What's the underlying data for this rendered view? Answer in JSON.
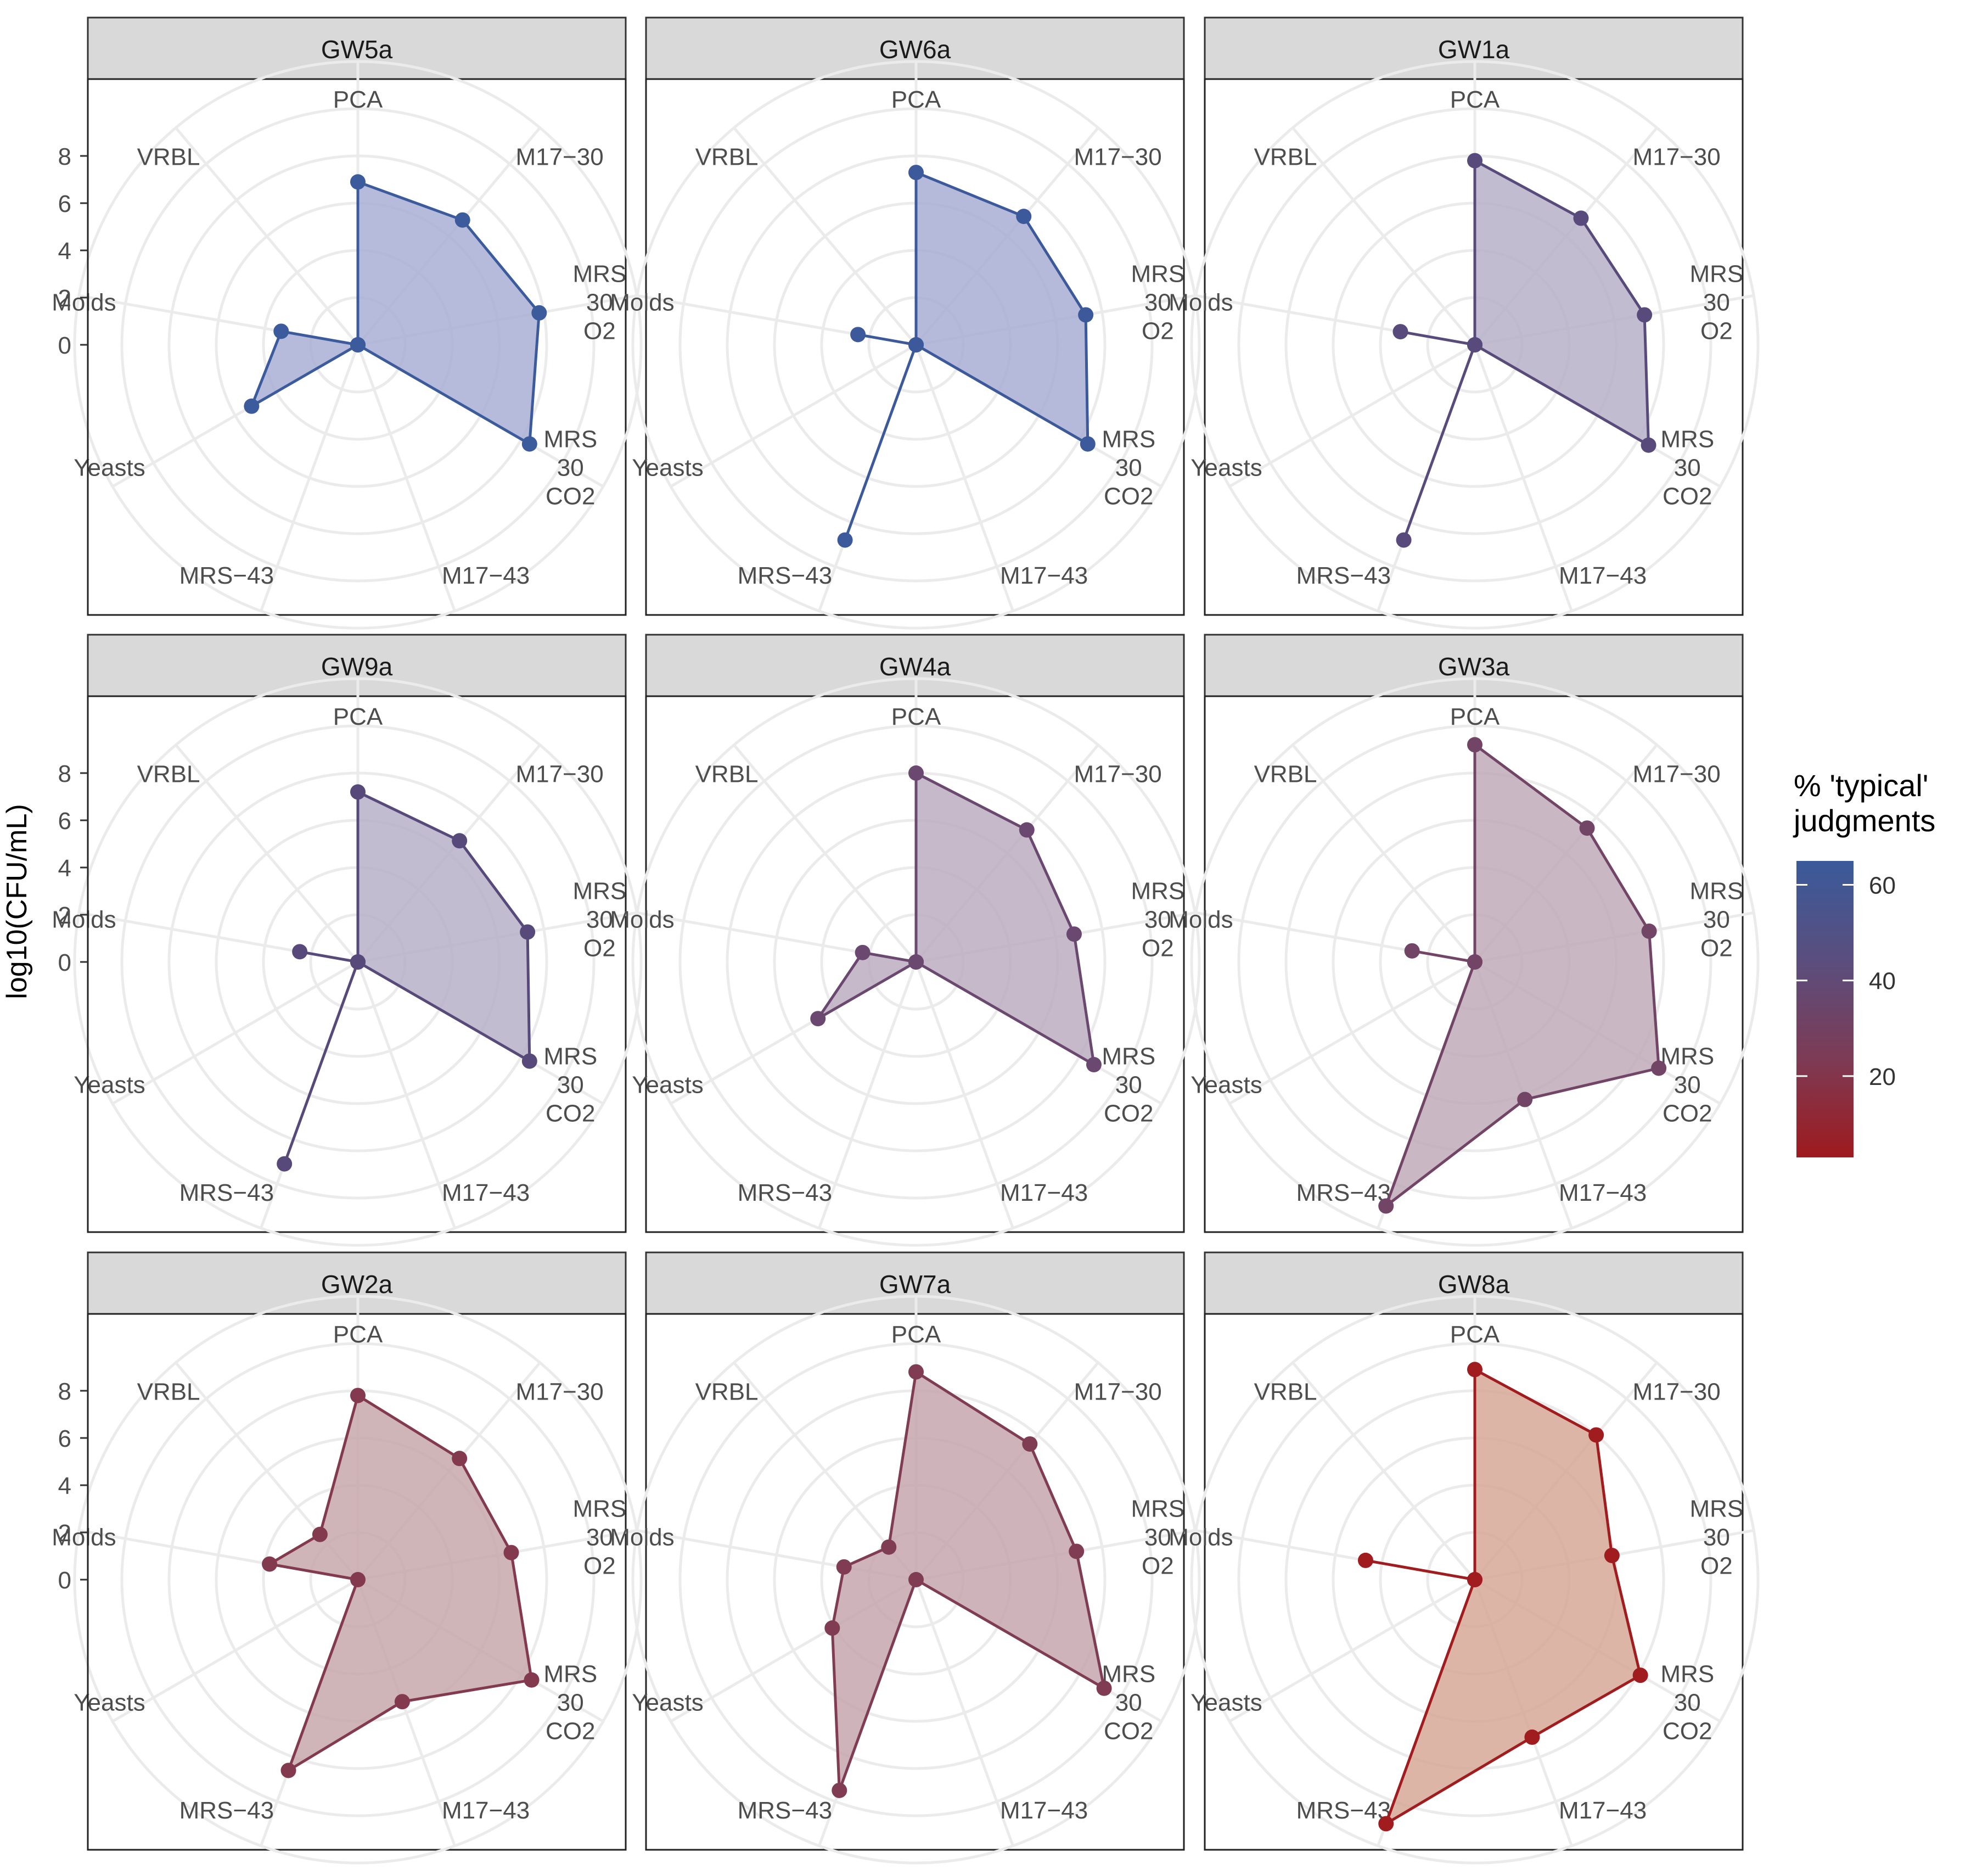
{
  "chart_data": {
    "type": "radar",
    "y_axis_label": "log10(CFU/mL)",
    "y_ticks": [
      "0",
      "2",
      "4",
      "6",
      "8"
    ],
    "r_range": [
      0,
      10
    ],
    "grid": true,
    "axes": [
      {
        "id": "PCA",
        "lines": [
          "PCA"
        ]
      },
      {
        "id": "M17-30",
        "lines": [
          "M17−30"
        ]
      },
      {
        "id": "MRS-30-O2",
        "lines": [
          "MRS",
          "30",
          "O2"
        ]
      },
      {
        "id": "MRS-30-CO2",
        "lines": [
          "MRS",
          "30",
          "CO2"
        ]
      },
      {
        "id": "M17-43",
        "lines": [
          "M17−43"
        ]
      },
      {
        "id": "MRS-43",
        "lines": [
          "MRS−43"
        ]
      },
      {
        "id": "Yeasts",
        "lines": [
          "Yeasts"
        ]
      },
      {
        "id": "Molds",
        "lines": [
          "Molds"
        ]
      },
      {
        "id": "VRBL",
        "lines": [
          "VRBL"
        ]
      }
    ],
    "legend": {
      "title_lines": [
        "% 'typical'",
        " judgments"
      ],
      "ticks": [
        20,
        40,
        60
      ],
      "range": [
        3,
        65
      ],
      "position": "right",
      "colors": [
        "#9e1a1e",
        "#7d3b55",
        "#5a4e7e",
        "#3a5a9a"
      ]
    },
    "panels": [
      {
        "title": "GW5a",
        "typical_pct": 64,
        "color": "#3b5b9c",
        "fill": "#a9afd5",
        "values": {
          "PCA": 6.9,
          "M17-30": 6.9,
          "MRS-30-O2": 7.8,
          "MRS-30-CO2": 8.4,
          "M17-43": 0,
          "MRS-43": 0,
          "Yeasts": 5.2,
          "Molds": 3.3,
          "VRBL": 0
        }
      },
      {
        "title": "GW6a",
        "typical_pct": 63,
        "color": "#3c5a9b",
        "fill": "#a9aed4",
        "values": {
          "PCA": 7.3,
          "M17-30": 7.1,
          "MRS-30-O2": 7.3,
          "MRS-30-CO2": 8.4,
          "M17-43": 0,
          "MRS-43": 8.8,
          "Yeasts": 0,
          "Molds": 2.5,
          "VRBL": 0
        }
      },
      {
        "title": "GW1a",
        "typical_pct": 52,
        "color": "#584b7c",
        "fill": "#b7b0c8",
        "values": {
          "PCA": 7.8,
          "M17-30": 7.0,
          "MRS-30-O2": 7.3,
          "MRS-30-CO2": 8.5,
          "M17-43": 0,
          "MRS-43": 8.8,
          "Yeasts": 0,
          "Molds": 3.2,
          "VRBL": 0
        }
      },
      {
        "title": "GW9a",
        "typical_pct": 52,
        "color": "#574a7a",
        "fill": "#b7b0c8",
        "values": {
          "PCA": 7.2,
          "M17-30": 6.7,
          "MRS-30-O2": 7.3,
          "MRS-30-CO2": 8.4,
          "M17-43": 0,
          "MRS-43": 9.1,
          "Yeasts": 0,
          "Molds": 2.5,
          "VRBL": 0
        }
      },
      {
        "title": "GW4a",
        "typical_pct": 46,
        "color": "#6b4870",
        "fill": "#bcadc0",
        "values": {
          "PCA": 8.0,
          "M17-30": 7.3,
          "MRS-30-O2": 6.8,
          "MRS-30-CO2": 8.7,
          "M17-43": 0,
          "MRS-43": 0,
          "Yeasts": 4.8,
          "Molds": 2.3,
          "VRBL": 0
        }
      },
      {
        "title": "GW3a",
        "typical_pct": 42,
        "color": "#724466",
        "fill": "#bfaab9",
        "values": {
          "PCA": 9.2,
          "M17-30": 7.4,
          "MRS-30-O2": 7.5,
          "MRS-30-CO2": 9.0,
          "M17-43": 6.2,
          "MRS-43": 11.0,
          "Yeasts": 0,
          "Molds": 2.7,
          "VRBL": 0
        }
      },
      {
        "title": "GW2a",
        "typical_pct": 30,
        "color": "#833a4e",
        "fill": "#c7a7ac",
        "values": {
          "PCA": 7.8,
          "M17-30": 6.7,
          "MRS-30-O2": 6.6,
          "MRS-30-CO2": 8.5,
          "M17-43": 5.5,
          "MRS-43": 8.6,
          "Yeasts": 0,
          "Molds": 3.8,
          "VRBL": 2.5
        }
      },
      {
        "title": "GW7a",
        "typical_pct": 32,
        "color": "#7f3c53",
        "fill": "#c5a7ae",
        "values": {
          "PCA": 8.8,
          "M17-30": 7.5,
          "MRS-30-O2": 6.9,
          "MRS-30-CO2": 9.2,
          "M17-43": 0,
          "MRS-43": 9.5,
          "Yeasts": 4.1,
          "Molds": 3.1,
          "VRBL": 1.8
        }
      },
      {
        "title": "GW8a",
        "typical_pct": 5,
        "color": "#a01c1f",
        "fill": "#d7a896",
        "values": {
          "PCA": 8.9,
          "M17-30": 8.0,
          "MRS-30-O2": 5.9,
          "MRS-30-CO2": 8.1,
          "M17-43": 7.1,
          "MRS-43": 11.0,
          "Yeasts": 0,
          "Molds": 4.7,
          "VRBL": 0
        }
      }
    ]
  }
}
